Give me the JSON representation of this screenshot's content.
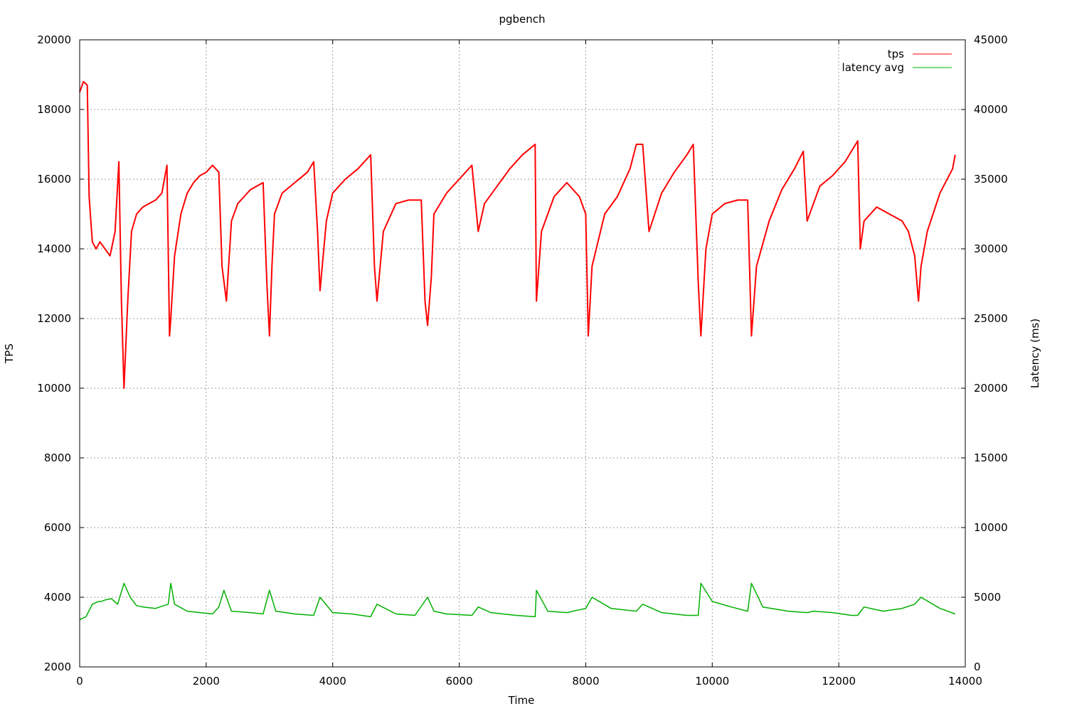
{
  "chart_data": {
    "type": "line",
    "title": "pgbench",
    "xlabel": "Time",
    "ylabel": "TPS",
    "y2label": "Latency (ms)",
    "xlim": [
      0,
      14000
    ],
    "ylim": [
      2000,
      20000
    ],
    "y2lim": [
      0,
      45000
    ],
    "x_ticks": [
      0,
      2000,
      4000,
      6000,
      8000,
      10000,
      12000,
      14000
    ],
    "y_ticks": [
      2000,
      4000,
      6000,
      8000,
      10000,
      12000,
      14000,
      16000,
      18000,
      20000
    ],
    "y2_ticks": [
      0,
      5000,
      10000,
      15000,
      20000,
      25000,
      30000,
      35000,
      40000,
      45000
    ],
    "grid": true,
    "legend_position": "top-right",
    "series": [
      {
        "name": "tps",
        "axis": "left",
        "color": "#ff0000",
        "x": [
          0,
          60,
          120,
          150,
          200,
          260,
          320,
          400,
          480,
          560,
          620,
          660,
          700,
          760,
          820,
          900,
          1000,
          1100,
          1200,
          1300,
          1380,
          1420,
          1440,
          1500,
          1600,
          1700,
          1800,
          1900,
          2000,
          2100,
          2200,
          2250,
          2320,
          2400,
          2500,
          2600,
          2700,
          2800,
          2900,
          2960,
          3000,
          3040,
          3080,
          3200,
          3400,
          3600,
          3700,
          3760,
          3800,
          3900,
          4000,
          4200,
          4400,
          4600,
          4660,
          4700,
          4800,
          5000,
          5200,
          5400,
          5460,
          5500,
          5560,
          5600,
          5800,
          6000,
          6200,
          6300,
          6400,
          6600,
          6800,
          7000,
          7200,
          7220,
          7300,
          7500,
          7700,
          7900,
          8000,
          8040,
          8100,
          8300,
          8500,
          8700,
          8800,
          8900,
          9000,
          9200,
          9400,
          9600,
          9700,
          9780,
          9820,
          9900,
          10000,
          10200,
          10400,
          10560,
          10620,
          10700,
          10900,
          11100,
          11300,
          11440,
          11500,
          11600,
          11700,
          11900,
          12100,
          12300,
          12340,
          12400,
          12600,
          12800,
          13000,
          13100,
          13200,
          13260,
          13300,
          13400,
          13600,
          13800,
          13840
        ],
        "y": [
          18500,
          18800,
          18700,
          15500,
          14200,
          14000,
          14200,
          14000,
          13800,
          14500,
          16500,
          12500,
          10000,
          12500,
          14500,
          15000,
          15200,
          15300,
          15400,
          15600,
          16400,
          11500,
          12000,
          13800,
          15000,
          15600,
          15900,
          16100,
          16200,
          16400,
          16200,
          13500,
          12500,
          14800,
          15300,
          15500,
          15700,
          15800,
          15900,
          13000,
          11500,
          13500,
          15000,
          15600,
          15900,
          16200,
          16500,
          14500,
          12800,
          14800,
          15600,
          16000,
          16300,
          16700,
          13500,
          12500,
          14500,
          15300,
          15400,
          15400,
          12500,
          11800,
          13200,
          15000,
          15600,
          16000,
          16400,
          14500,
          15300,
          15800,
          16300,
          16700,
          17000,
          12500,
          14500,
          15500,
          15900,
          15500,
          15000,
          11500,
          13500,
          15000,
          15500,
          16300,
          17000,
          17000,
          14500,
          15600,
          16200,
          16700,
          17000,
          13000,
          11500,
          14000,
          15000,
          15300,
          15400,
          15400,
          11500,
          13500,
          14800,
          15700,
          16300,
          16800,
          14800,
          15300,
          15800,
          16100,
          16500,
          17100,
          14000,
          14800,
          15200,
          15000,
          14800,
          14500,
          13800,
          12500,
          13500,
          14500,
          15600,
          16300,
          16700
        ]
      },
      {
        "name": "latency avg",
        "axis": "right",
        "color": "#00b000",
        "x": [
          0,
          100,
          200,
          300,
          340,
          400,
          500,
          600,
          700,
          800,
          900,
          1000,
          1200,
          1400,
          1440,
          1500,
          1700,
          1900,
          2100,
          2200,
          2280,
          2400,
          2700,
          2900,
          3000,
          3100,
          3400,
          3700,
          3800,
          4000,
          4300,
          4600,
          4700,
          5000,
          5300,
          5500,
          5600,
          5800,
          6200,
          6300,
          6500,
          6900,
          7200,
          7220,
          7400,
          7700,
          8000,
          8100,
          8400,
          8800,
          8900,
          9200,
          9600,
          9780,
          9820,
          10000,
          10300,
          10560,
          10620,
          10800,
          11200,
          11500,
          11600,
          11900,
          12200,
          12300,
          12400,
          12700,
          13000,
          13200,
          13300,
          13600,
          13840
        ],
        "y": [
          3400,
          3600,
          4500,
          4700,
          4700,
          4800,
          4900,
          4500,
          6000,
          5000,
          4400,
          4300,
          4200,
          4500,
          6000,
          4500,
          4000,
          3900,
          3800,
          4300,
          5500,
          4000,
          3900,
          3800,
          5500,
          4000,
          3800,
          3700,
          5000,
          3900,
          3800,
          3600,
          4500,
          3800,
          3700,
          5000,
          4000,
          3800,
          3700,
          4300,
          3900,
          3700,
          3600,
          5500,
          4000,
          3900,
          4200,
          5000,
          4200,
          4000,
          4500,
          3900,
          3700,
          3700,
          6000,
          4700,
          4300,
          4000,
          6000,
          4300,
          4000,
          3900,
          4000,
          3900,
          3700,
          3700,
          4300,
          4000,
          4200,
          4500,
          5000,
          4200,
          3800
        ]
      }
    ]
  }
}
